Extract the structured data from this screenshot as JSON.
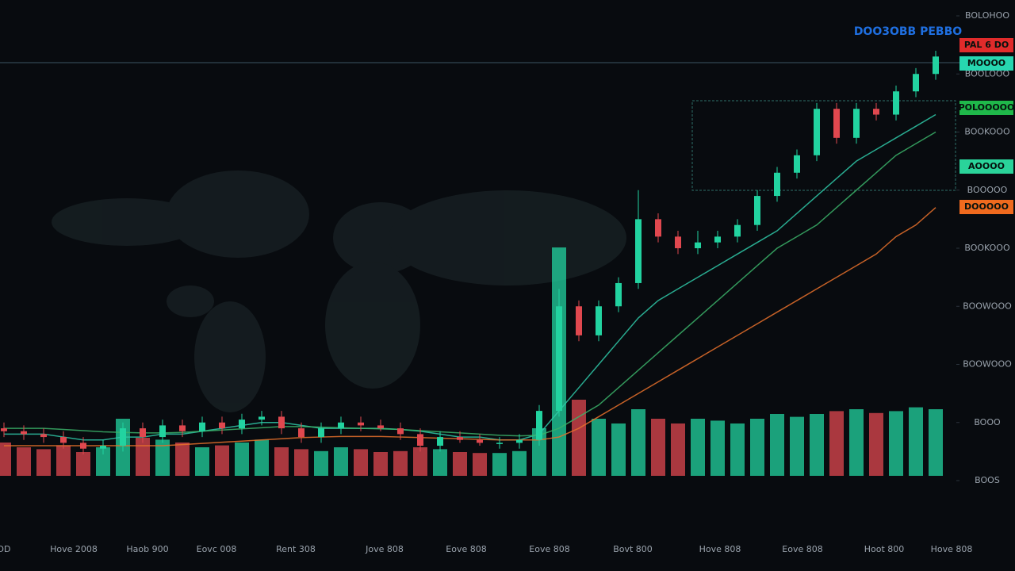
{
  "chart_data": {
    "type": "candlestick",
    "title": "DOO3OBB PEBBO",
    "x_labels": [
      "DD",
      "Hove 2008",
      "Haob 900",
      "Eovc 008",
      "Rent 308",
      "Jove 808",
      "Eove 808",
      "Eove 808",
      "Bovt 800",
      "Hove 808",
      "Eove 808",
      "Hoot 800",
      "Hove 808"
    ],
    "open": [
      9,
      8.5,
      8,
      7.5,
      6.5,
      5.5,
      6,
      9,
      7.5,
      9.5,
      8.5,
      10,
      9,
      10.5,
      11,
      9,
      7.5,
      9,
      10,
      9.5,
      9,
      8,
      6,
      7.5,
      7,
      6.5,
      6.5,
      7,
      12,
      30,
      25,
      30,
      34,
      45,
      42,
      40,
      41,
      42,
      44,
      49,
      53,
      56,
      64,
      59,
      64,
      63,
      67,
      70
    ],
    "high": [
      10,
      9.5,
      9,
      8.5,
      7.5,
      7,
      10,
      10,
      10.5,
      10.5,
      11,
      11,
      11.5,
      12,
      12,
      10,
      10,
      11,
      11,
      10.5,
      10,
      9,
      8.5,
      8.5,
      8,
      7.5,
      8,
      13,
      33,
      31,
      31,
      35,
      50,
      46,
      43,
      43,
      43,
      45,
      50,
      54,
      57,
      65,
      65,
      65,
      65,
      68,
      71,
      74
    ],
    "low": [
      7.5,
      7,
      6.5,
      5.5,
      4.5,
      4.5,
      5,
      6.5,
      6.5,
      7.5,
      7.5,
      8,
      8,
      9.5,
      8,
      6.5,
      6.5,
      8,
      8.5,
      8.5,
      7,
      5,
      5,
      6.5,
      6,
      5.5,
      5.5,
      6,
      11,
      24,
      24,
      29,
      33,
      41,
      39,
      39,
      40,
      41,
      43,
      48,
      52,
      55,
      58,
      58,
      62,
      62,
      66,
      69
    ],
    "close": [
      8.5,
      8,
      7.5,
      6.5,
      5.5,
      6,
      9,
      7.5,
      9.5,
      8.5,
      10,
      9,
      10.5,
      11,
      9,
      7.5,
      9,
      10,
      9.5,
      9,
      8,
      6,
      7.5,
      7,
      6.5,
      6.5,
      7,
      12,
      30,
      25,
      30,
      34,
      45,
      42,
      40,
      41,
      42,
      44,
      49,
      53,
      56,
      64,
      59,
      64,
      63,
      67,
      70,
      73
    ],
    "volume": [
      35,
      30,
      28,
      32,
      25,
      30,
      60,
      40,
      38,
      35,
      30,
      32,
      35,
      38,
      30,
      28,
      26,
      30,
      28,
      25,
      26,
      30,
      28,
      25,
      24,
      24,
      26,
      50,
      240,
      80,
      60,
      55,
      70,
      60,
      55,
      60,
      58,
      55,
      60,
      65,
      62,
      65,
      68,
      70,
      66,
      68,
      72,
      70
    ],
    "up_color": "#22d3a0",
    "down_color": "#e0484f",
    "ylim": [
      0,
      80
    ],
    "yticks": [
      {
        "value": 0,
        "label": "BOOS"
      },
      {
        "value": 10,
        "label": "BOOO"
      },
      {
        "value": 20,
        "label": "BOOWOOO"
      },
      {
        "value": 30,
        "label": "BOOWOOO"
      },
      {
        "value": 40,
        "label": "BOOKOOO"
      },
      {
        "value": 50,
        "label": "BOOOOO"
      },
      {
        "value": 60,
        "label": "BOOKOOO"
      },
      {
        "value": 70,
        "label": "BOOLOOO"
      },
      {
        "value": 80,
        "label": "BOLOHOO"
      }
    ],
    "y2lim": [
      0,
      250
    ],
    "moving_averages": [
      {
        "color": "#2fc9a8",
        "values": [
          8,
          8,
          8,
          7.5,
          7,
          7,
          7.5,
          7.5,
          8,
          8,
          8.5,
          9,
          9.5,
          10,
          10,
          9.5,
          9,
          9,
          9,
          9,
          8.8,
          8.5,
          8,
          7.5,
          7.5,
          7,
          7,
          8,
          12,
          16,
          20,
          24,
          28,
          31,
          33,
          35,
          37,
          39,
          41,
          43,
          46,
          49,
          52,
          55,
          57,
          59,
          61,
          63
        ]
      },
      {
        "color": "#3bb36a",
        "values": [
          9,
          9,
          9,
          8.8,
          8.6,
          8.4,
          8.3,
          8.2,
          8.2,
          8.3,
          8.5,
          8.7,
          8.9,
          9.1,
          9.3,
          9.3,
          9.2,
          9.1,
          9,
          8.9,
          8.8,
          8.6,
          8.4,
          8.2,
          8,
          7.8,
          7.7,
          7.8,
          9,
          11,
          13,
          16,
          19,
          22,
          25,
          28,
          31,
          34,
          37,
          40,
          42,
          44,
          47,
          50,
          53,
          56,
          58,
          60
        ]
      },
      {
        "color": "#e8712c",
        "values": [
          6,
          6,
          6,
          6,
          6,
          6,
          6,
          6,
          6,
          6.2,
          6.4,
          6.6,
          6.8,
          7,
          7.2,
          7.4,
          7.5,
          7.6,
          7.6,
          7.6,
          7.5,
          7.4,
          7.3,
          7.2,
          7.1,
          7,
          7,
          7,
          7.5,
          9,
          11,
          13,
          15,
          17,
          19,
          21,
          23,
          25,
          27,
          29,
          31,
          33,
          35,
          37,
          39,
          42,
          44,
          47
        ]
      }
    ],
    "price_tags": [
      {
        "label": "PAL 6 DO",
        "color": "#e02b2b"
      },
      {
        "label": "MOOOO",
        "color": "#27d6b0"
      },
      {
        "label": "POLOOOOO",
        "color": "#1fb84a"
      },
      {
        "label": "AOOOO",
        "color": "#2ad39a"
      },
      {
        "label": "DOOOOO",
        "color": "#ef6a1e"
      }
    ]
  }
}
